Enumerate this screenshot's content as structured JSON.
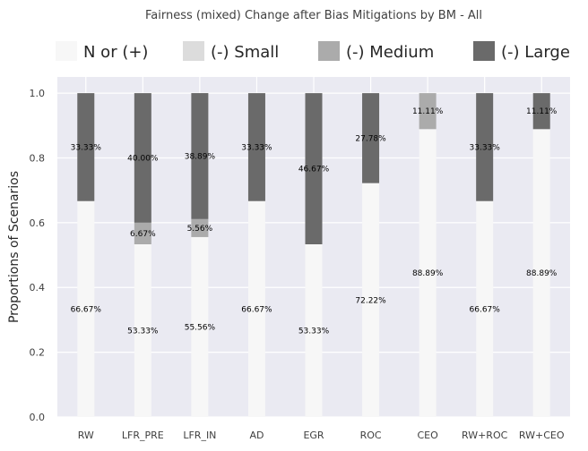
{
  "chart_data": {
    "type": "bar",
    "stacked": true,
    "title": "Fairness (mixed) Change after Bias Mitigations by BM - All",
    "xlabel": "",
    "ylabel": "Proportions of Scenarios",
    "ylim": [
      0,
      1.05
    ],
    "yticks": [
      "0.0",
      "0.2",
      "0.4",
      "0.6",
      "0.8",
      "1.0"
    ],
    "grid": true,
    "legend_position": "top",
    "categories": [
      "RW",
      "LFR_PRE",
      "LFR_IN",
      "AD",
      "EGR",
      "ROC",
      "CEO",
      "RW+ROC",
      "RW+CEO"
    ],
    "series": [
      {
        "name": "N or (+)",
        "color": "#f7f7f7",
        "values": [
          0.6667,
          0.5333,
          0.5556,
          0.6667,
          0.5333,
          0.7222,
          0.8889,
          0.6667,
          0.8889
        ],
        "labels": [
          "66.67%",
          "53.33%",
          "55.56%",
          "66.67%",
          "53.33%",
          "72.22%",
          "88.89%",
          "66.67%",
          "88.89%"
        ]
      },
      {
        "name": "(-) Small",
        "color": "#dcdcdc",
        "values": [
          0,
          0,
          0,
          0,
          0,
          0,
          0,
          0,
          0
        ],
        "labels": [
          "",
          "",
          "",
          "",
          "",
          "",
          "",
          "",
          ""
        ]
      },
      {
        "name": "(-) Medium",
        "color": "#ababab",
        "values": [
          0,
          0.0667,
          0.0556,
          0,
          0,
          0,
          0.1111,
          0,
          0
        ],
        "labels": [
          "",
          "6.67%",
          "5.56%",
          "",
          "",
          "",
          "11.11%",
          "",
          ""
        ]
      },
      {
        "name": "(-) Large",
        "color": "#6a6a6a",
        "values": [
          0.3333,
          0.4,
          0.3889,
          0.3333,
          0.4667,
          0.2778,
          0,
          0.3333,
          0.1111
        ],
        "labels": [
          "33.33%",
          "40.00%",
          "38.89%",
          "33.33%",
          "46.67%",
          "27.78%",
          "",
          "33.33%",
          "11.11%"
        ]
      }
    ]
  }
}
